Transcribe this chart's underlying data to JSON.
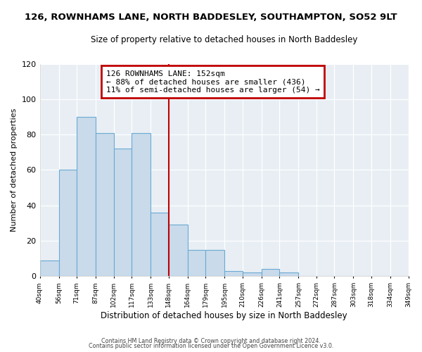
{
  "title": "126, ROWNHAMS LANE, NORTH BADDESLEY, SOUTHAMPTON, SO52 9LT",
  "subtitle": "Size of property relative to detached houses in North Baddesley",
  "xlabel": "Distribution of detached houses by size in North Baddesley",
  "ylabel": "Number of detached properties",
  "bar_edges": [
    40,
    56,
    71,
    87,
    102,
    117,
    133,
    148,
    164,
    179,
    195,
    210,
    226,
    241,
    257,
    272,
    287,
    303,
    318,
    334,
    349
  ],
  "bar_heights": [
    9,
    60,
    90,
    81,
    72,
    81,
    36,
    29,
    15,
    15,
    3,
    2,
    4,
    2,
    0,
    0,
    0,
    0,
    0,
    0
  ],
  "bar_color": "#c9daea",
  "bar_edgecolor": "#6aaad4",
  "vline_x": 148,
  "vline_color": "#c00000",
  "annotation_title": "126 ROWNHAMS LANE: 152sqm",
  "annotation_line1": "← 88% of detached houses are smaller (436)",
  "annotation_line2": "11% of semi-detached houses are larger (54) →",
  "annotation_box_edgecolor": "#c00000",
  "ylim": [
    0,
    120
  ],
  "yticks": [
    0,
    20,
    40,
    60,
    80,
    100,
    120
  ],
  "xtick_labels": [
    "40sqm",
    "56sqm",
    "71sqm",
    "87sqm",
    "102sqm",
    "117sqm",
    "133sqm",
    "148sqm",
    "164sqm",
    "179sqm",
    "195sqm",
    "210sqm",
    "226sqm",
    "241sqm",
    "257sqm",
    "272sqm",
    "287sqm",
    "303sqm",
    "318sqm",
    "334sqm",
    "349sqm"
  ],
  "footer1": "Contains HM Land Registry data © Crown copyright and database right 2024.",
  "footer2": "Contains public sector information licensed under the Open Government Licence v3.0.",
  "fig_bg_color": "#ffffff",
  "plot_bg_color": "#e8eef4"
}
